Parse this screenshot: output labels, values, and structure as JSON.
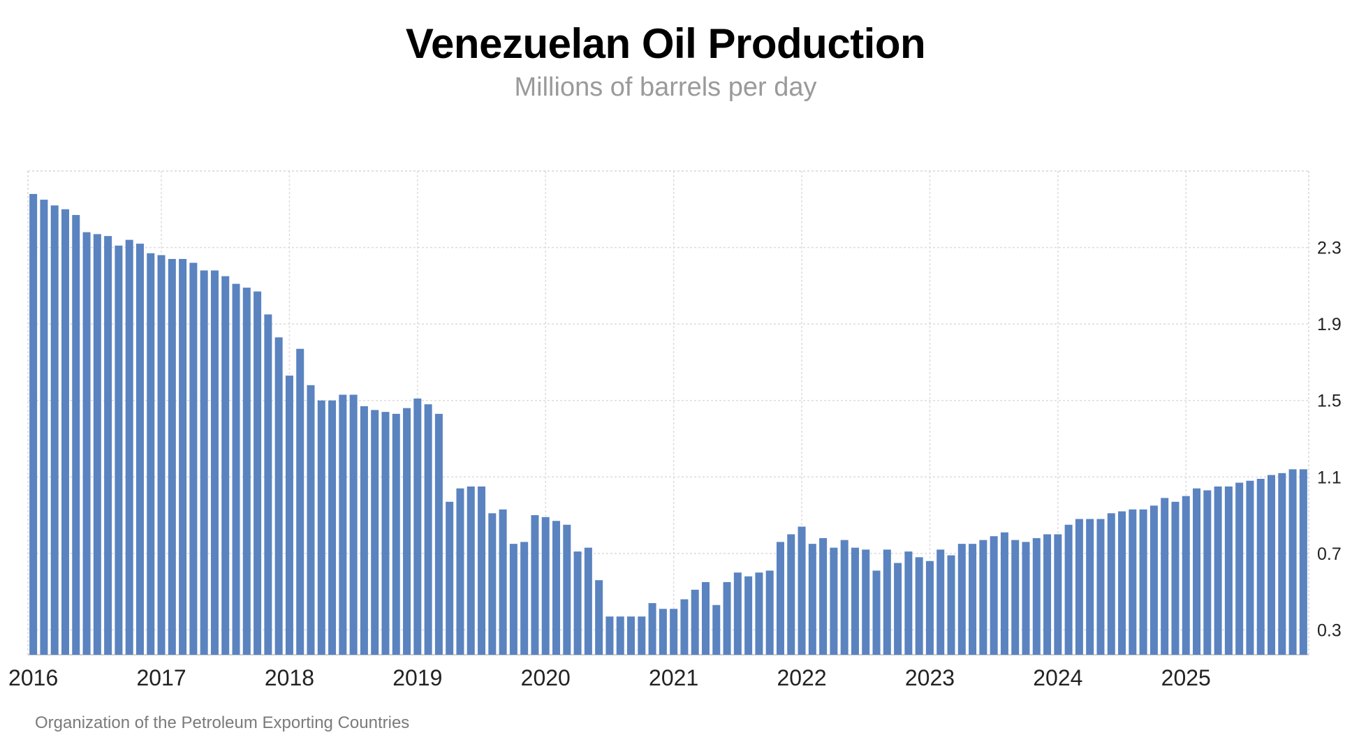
{
  "chart_data": {
    "type": "bar",
    "title": "Venezuelan Oil Production",
    "subtitle": "Millions of barrels per day",
    "source": "Organization of the Petroleum Exporting Countries",
    "xlabel": "",
    "ylabel": "",
    "ylim": [
      0.17,
      2.7
    ],
    "y_ticks": [
      "0.3",
      "0.7",
      "1.1",
      "1.5",
      "1.9",
      "2.3"
    ],
    "x_ticks": [
      "2016",
      "2017",
      "2018",
      "2019",
      "2020",
      "2021",
      "2022",
      "2023",
      "2024",
      "2025"
    ],
    "grid": true,
    "bar_color": "#5a83c0",
    "start_period": "2016-01",
    "values": [
      2.58,
      2.55,
      2.52,
      2.5,
      2.47,
      2.38,
      2.37,
      2.36,
      2.31,
      2.34,
      2.32,
      2.27,
      2.26,
      2.24,
      2.24,
      2.22,
      2.18,
      2.18,
      2.15,
      2.11,
      2.09,
      2.07,
      1.95,
      1.83,
      1.63,
      1.77,
      1.58,
      1.5,
      1.5,
      1.53,
      1.53,
      1.47,
      1.45,
      1.44,
      1.43,
      1.46,
      1.51,
      1.48,
      1.43,
      0.97,
      1.04,
      1.05,
      1.05,
      0.91,
      0.93,
      0.75,
      0.76,
      0.9,
      0.89,
      0.87,
      0.85,
      0.71,
      0.73,
      0.56,
      0.37,
      0.37,
      0.37,
      0.37,
      0.44,
      0.41,
      0.41,
      0.46,
      0.51,
      0.55,
      0.43,
      0.55,
      0.6,
      0.58,
      0.6,
      0.61,
      0.76,
      0.8,
      0.84,
      0.75,
      0.78,
      0.73,
      0.77,
      0.73,
      0.72,
      0.61,
      0.72,
      0.65,
      0.71,
      0.68,
      0.66,
      0.72,
      0.69,
      0.75,
      0.75,
      0.77,
      0.79,
      0.81,
      0.77,
      0.76,
      0.78,
      0.8,
      0.8,
      0.85,
      0.88,
      0.88,
      0.88,
      0.91,
      0.92,
      0.93,
      0.93,
      0.95,
      0.99,
      0.97,
      1.0,
      1.04,
      1.03,
      1.05,
      1.05,
      1.07,
      1.08,
      1.09,
      1.11,
      1.12,
      1.14,
      1.14
    ]
  }
}
